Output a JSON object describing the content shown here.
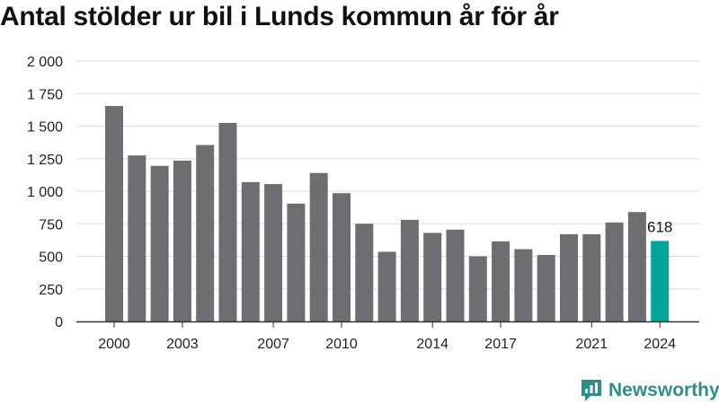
{
  "title": "Antal stölder ur bil i Lunds kommun år för år",
  "logo_text": "Newsworthy",
  "colors": {
    "bar": "#6e6d72",
    "highlight": "#00a59a",
    "brand": "#2e8f8a",
    "grid": "#dddddd",
    "axis": "#333333"
  },
  "chart_data": {
    "type": "bar",
    "title": "Antal stölder ur bil i Lunds kommun år för år",
    "xlabel": "",
    "ylabel": "",
    "categories": [
      "2000",
      "2001",
      "2002",
      "2003",
      "2004",
      "2005",
      "2006",
      "2007",
      "2008",
      "2009",
      "2010",
      "2011",
      "2012",
      "2013",
      "2014",
      "2015",
      "2016",
      "2017",
      "2018",
      "2019",
      "2020",
      "2021",
      "2022",
      "2023",
      "2024"
    ],
    "values": [
      1655,
      1275,
      1195,
      1235,
      1355,
      1525,
      1070,
      1055,
      905,
      1140,
      985,
      750,
      535,
      780,
      680,
      705,
      500,
      615,
      555,
      510,
      670,
      670,
      760,
      840,
      618
    ],
    "x_tick_labels": [
      "2000",
      "2003",
      "2007",
      "2010",
      "2014",
      "2017",
      "2021",
      "2024"
    ],
    "y_ticks": [
      0,
      250,
      500,
      750,
      1000,
      1250,
      1500,
      1750,
      2000
    ],
    "y_tick_labels": [
      "0",
      "250",
      "500",
      "750",
      "1 000",
      "1 250",
      "1 500",
      "1 750",
      "2 000"
    ],
    "ylim": [
      0,
      2000
    ],
    "grid": true,
    "highlight_category": "2024",
    "data_labels": [
      {
        "category": "2024",
        "text": "618"
      }
    ]
  }
}
